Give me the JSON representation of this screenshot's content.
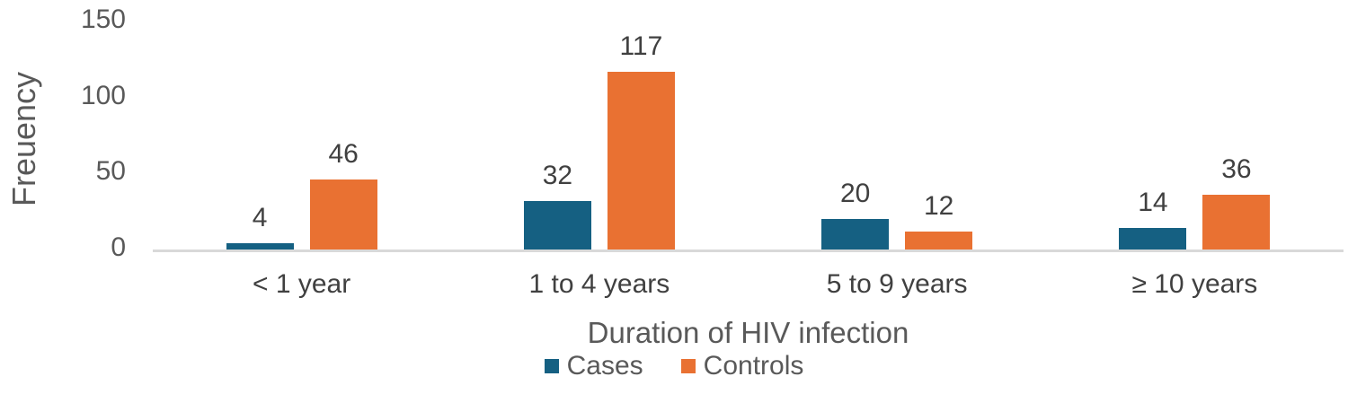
{
  "chart_data": {
    "type": "bar",
    "title": "",
    "categories": [
      "< 1 year",
      "1 to 4 years",
      "5 to 9 years",
      "≥ 10 years"
    ],
    "series": [
      {
        "name": "Cases",
        "color": "#156082",
        "values": [
          4,
          32,
          20,
          14
        ]
      },
      {
        "name": "Controls",
        "color": "#E97132",
        "values": [
          46,
          117,
          12,
          36
        ]
      }
    ],
    "xlabel": "Duration of HIV infection",
    "ylabel": "Freuency",
    "ylim": [
      0,
      150
    ],
    "yticks": [
      0,
      50,
      100,
      150
    ],
    "grid": false,
    "legend_position": "bottom",
    "data_labels": true
  },
  "style": {
    "axis_line_color": "#d9d9d9",
    "tick_text_color": "#595959",
    "data_label_color": "#404040"
  }
}
